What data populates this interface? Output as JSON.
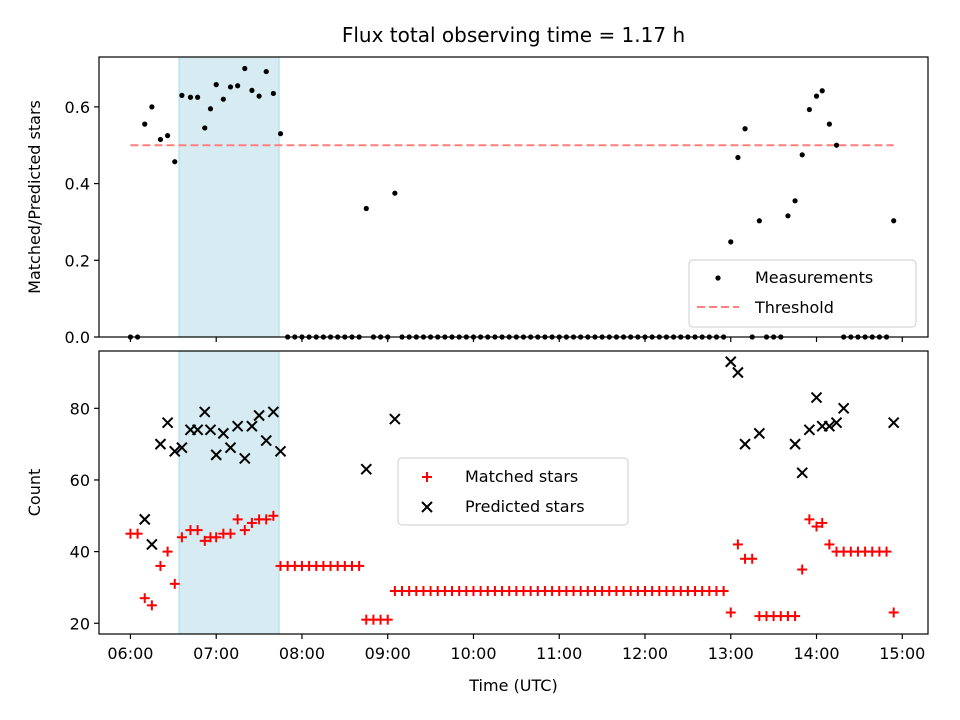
{
  "title": "Flux total observing time = 1.17 h",
  "colors": {
    "measurement": "#000000",
    "threshold": "#ff7f7f",
    "matched": "#ff0000",
    "predicted": "#000000",
    "span": "#add8e6"
  },
  "chart_data": [
    {
      "type": "scatter",
      "name": "ratio-panel",
      "ylabel": "Matched/Predicted stars",
      "xlabel": "",
      "ylim": [
        0,
        0.73
      ],
      "yticks": [
        0.0,
        0.2,
        0.4,
        0.6
      ],
      "ytick_labels": [
        "0.0",
        "0.2",
        "0.4",
        "0.6"
      ],
      "grid": false,
      "legend_position": "lower right",
      "highlight_span": {
        "start": "06:34",
        "end": "07:44"
      },
      "series": [
        {
          "name": "Measurements",
          "marker": "dot",
          "points": [
            [
              "06:00",
              0.0
            ],
            [
              "06:05",
              0.0
            ],
            [
              "06:10",
              0.555
            ],
            [
              "06:15",
              0.6
            ],
            [
              "06:21",
              0.515
            ],
            [
              "06:26",
              0.525
            ],
            [
              "06:31",
              0.457
            ],
            [
              "06:36",
              0.63
            ],
            [
              "06:42",
              0.625
            ],
            [
              "06:47",
              0.625
            ],
            [
              "06:52",
              0.545
            ],
            [
              "06:56",
              0.595
            ],
            [
              "07:00",
              0.658
            ],
            [
              "07:05",
              0.62
            ],
            [
              "07:10",
              0.652
            ],
            [
              "07:15",
              0.655
            ],
            [
              "07:20",
              0.7
            ],
            [
              "07:25",
              0.643
            ],
            [
              "07:30",
              0.628
            ],
            [
              "07:35",
              0.692
            ],
            [
              "07:40",
              0.635
            ],
            [
              "07:45",
              0.53
            ],
            [
              "07:50",
              0.0
            ],
            [
              "07:55",
              0.0
            ],
            [
              "08:00",
              0.0
            ],
            [
              "08:05",
              0.0
            ],
            [
              "08:10",
              0.0
            ],
            [
              "08:15",
              0.0
            ],
            [
              "08:20",
              0.0
            ],
            [
              "08:25",
              0.0
            ],
            [
              "08:30",
              0.0
            ],
            [
              "08:35",
              0.0
            ],
            [
              "08:40",
              0.0
            ],
            [
              "08:45",
              0.335
            ],
            [
              "08:50",
              0.0
            ],
            [
              "08:55",
              0.0
            ],
            [
              "09:00",
              0.0
            ],
            [
              "09:05",
              0.375
            ],
            [
              "09:10",
              0.0
            ],
            [
              "09:15",
              0.0
            ],
            [
              "09:20",
              0.0
            ],
            [
              "09:25",
              0.0
            ],
            [
              "09:30",
              0.0
            ],
            [
              "09:35",
              0.0
            ],
            [
              "09:40",
              0.0
            ],
            [
              "09:45",
              0.0
            ],
            [
              "09:50",
              0.0
            ],
            [
              "09:55",
              0.0
            ],
            [
              "10:00",
              0.0
            ],
            [
              "10:05",
              0.0
            ],
            [
              "10:10",
              0.0
            ],
            [
              "10:15",
              0.0
            ],
            [
              "10:20",
              0.0
            ],
            [
              "10:25",
              0.0
            ],
            [
              "10:30",
              0.0
            ],
            [
              "10:35",
              0.0
            ],
            [
              "10:40",
              0.0
            ],
            [
              "10:45",
              0.0
            ],
            [
              "10:50",
              0.0
            ],
            [
              "10:55",
              0.0
            ],
            [
              "11:00",
              0.0
            ],
            [
              "11:05",
              0.0
            ],
            [
              "11:10",
              0.0
            ],
            [
              "11:15",
              0.0
            ],
            [
              "11:20",
              0.0
            ],
            [
              "11:25",
              0.0
            ],
            [
              "11:30",
              0.0
            ],
            [
              "11:35",
              0.0
            ],
            [
              "11:40",
              0.0
            ],
            [
              "11:45",
              0.0
            ],
            [
              "11:50",
              0.0
            ],
            [
              "11:55",
              0.0
            ],
            [
              "12:00",
              0.0
            ],
            [
              "12:05",
              0.0
            ],
            [
              "12:10",
              0.0
            ],
            [
              "12:15",
              0.0
            ],
            [
              "12:20",
              0.0
            ],
            [
              "12:25",
              0.0
            ],
            [
              "12:30",
              0.0
            ],
            [
              "12:35",
              0.0
            ],
            [
              "12:40",
              0.0
            ],
            [
              "12:45",
              0.0
            ],
            [
              "12:50",
              0.0
            ],
            [
              "12:55",
              0.0
            ],
            [
              "13:00",
              0.248
            ],
            [
              "13:05",
              0.468
            ],
            [
              "13:10",
              0.543
            ],
            [
              "13:15",
              0.0
            ],
            [
              "13:20",
              0.303
            ],
            [
              "13:25",
              0.0
            ],
            [
              "13:30",
              0.0
            ],
            [
              "13:35",
              0.0
            ],
            [
              "13:40",
              0.316
            ],
            [
              "13:45",
              0.355
            ],
            [
              "13:50",
              0.475
            ],
            [
              "13:55",
              0.593
            ],
            [
              "14:00",
              0.628
            ],
            [
              "14:04",
              0.642
            ],
            [
              "14:09",
              0.555
            ],
            [
              "14:14",
              0.5
            ],
            [
              "14:19",
              0.0
            ],
            [
              "14:24",
              0.0
            ],
            [
              "14:29",
              0.0
            ],
            [
              "14:34",
              0.0
            ],
            [
              "14:39",
              0.0
            ],
            [
              "14:44",
              0.0
            ],
            [
              "14:49",
              0.0
            ],
            [
              "14:54",
              0.303
            ]
          ]
        },
        {
          "name": "Threshold",
          "style": "dashed",
          "from": "06:00",
          "to": "14:54",
          "value": 0.5
        }
      ]
    },
    {
      "type": "scatter",
      "name": "count-panel",
      "ylabel": "Count",
      "xlabel": "Time (UTC)",
      "ylim": [
        17,
        96
      ],
      "yticks": [
        20,
        40,
        60,
        80
      ],
      "ytick_labels": [
        "20",
        "40",
        "60",
        "80"
      ],
      "xticks": [
        "06:00",
        "07:00",
        "08:00",
        "09:00",
        "10:00",
        "11:00",
        "12:00",
        "13:00",
        "14:00",
        "15:00"
      ],
      "grid": false,
      "legend_position": "center",
      "highlight_span": {
        "start": "06:34",
        "end": "07:44"
      },
      "series": [
        {
          "name": "Matched stars",
          "marker": "plus",
          "points": [
            [
              "06:00",
              45
            ],
            [
              "06:05",
              45
            ],
            [
              "06:10",
              27
            ],
            [
              "06:15",
              25
            ],
            [
              "06:21",
              36
            ],
            [
              "06:26",
              40
            ],
            [
              "06:31",
              31
            ],
            [
              "06:36",
              44
            ],
            [
              "06:42",
              46
            ],
            [
              "06:47",
              46
            ],
            [
              "06:52",
              43
            ],
            [
              "06:56",
              44
            ],
            [
              "07:00",
              44
            ],
            [
              "07:05",
              45
            ],
            [
              "07:10",
              45
            ],
            [
              "07:15",
              49
            ],
            [
              "07:20",
              46
            ],
            [
              "07:25",
              48
            ],
            [
              "07:30",
              49
            ],
            [
              "07:35",
              49
            ],
            [
              "07:40",
              50
            ],
            [
              "07:45",
              36
            ],
            [
              "07:50",
              36
            ],
            [
              "07:55",
              36
            ],
            [
              "08:00",
              36
            ],
            [
              "08:05",
              36
            ],
            [
              "08:10",
              36
            ],
            [
              "08:15",
              36
            ],
            [
              "08:20",
              36
            ],
            [
              "08:25",
              36
            ],
            [
              "08:30",
              36
            ],
            [
              "08:35",
              36
            ],
            [
              "08:40",
              36
            ],
            [
              "08:45",
              21
            ],
            [
              "08:50",
              21
            ],
            [
              "08:55",
              21
            ],
            [
              "09:00",
              21
            ],
            [
              "09:05",
              29
            ],
            [
              "09:10",
              29
            ],
            [
              "09:15",
              29
            ],
            [
              "09:20",
              29
            ],
            [
              "09:25",
              29
            ],
            [
              "09:30",
              29
            ],
            [
              "09:35",
              29
            ],
            [
              "09:40",
              29
            ],
            [
              "09:45",
              29
            ],
            [
              "09:50",
              29
            ],
            [
              "09:55",
              29
            ],
            [
              "10:00",
              29
            ],
            [
              "10:05",
              29
            ],
            [
              "10:10",
              29
            ],
            [
              "10:15",
              29
            ],
            [
              "10:20",
              29
            ],
            [
              "10:25",
              29
            ],
            [
              "10:30",
              29
            ],
            [
              "10:35",
              29
            ],
            [
              "10:40",
              29
            ],
            [
              "10:45",
              29
            ],
            [
              "10:50",
              29
            ],
            [
              "10:55",
              29
            ],
            [
              "11:00",
              29
            ],
            [
              "11:05",
              29
            ],
            [
              "11:10",
              29
            ],
            [
              "11:15",
              29
            ],
            [
              "11:20",
              29
            ],
            [
              "11:25",
              29
            ],
            [
              "11:30",
              29
            ],
            [
              "11:35",
              29
            ],
            [
              "11:40",
              29
            ],
            [
              "11:45",
              29
            ],
            [
              "11:50",
              29
            ],
            [
              "11:55",
              29
            ],
            [
              "12:00",
              29
            ],
            [
              "12:05",
              29
            ],
            [
              "12:10",
              29
            ],
            [
              "12:15",
              29
            ],
            [
              "12:20",
              29
            ],
            [
              "12:25",
              29
            ],
            [
              "12:30",
              29
            ],
            [
              "12:35",
              29
            ],
            [
              "12:40",
              29
            ],
            [
              "12:45",
              29
            ],
            [
              "12:50",
              29
            ],
            [
              "12:55",
              29
            ],
            [
              "13:00",
              23
            ],
            [
              "13:05",
              42
            ],
            [
              "13:10",
              38
            ],
            [
              "13:15",
              38
            ],
            [
              "13:20",
              22
            ],
            [
              "13:25",
              22
            ],
            [
              "13:30",
              22
            ],
            [
              "13:35",
              22
            ],
            [
              "13:40",
              22
            ],
            [
              "13:45",
              22
            ],
            [
              "13:50",
              35
            ],
            [
              "13:55",
              49
            ],
            [
              "14:00",
              47
            ],
            [
              "14:04",
              48
            ],
            [
              "14:09",
              42
            ],
            [
              "14:14",
              40
            ],
            [
              "14:19",
              40
            ],
            [
              "14:24",
              40
            ],
            [
              "14:29",
              40
            ],
            [
              "14:34",
              40
            ],
            [
              "14:39",
              40
            ],
            [
              "14:44",
              40
            ],
            [
              "14:49",
              40
            ],
            [
              "14:54",
              23
            ]
          ]
        },
        {
          "name": "Predicted stars",
          "marker": "x",
          "points": [
            [
              "06:10",
              49
            ],
            [
              "06:15",
              42
            ],
            [
              "06:21",
              70
            ],
            [
              "06:26",
              76
            ],
            [
              "06:31",
              68
            ],
            [
              "06:36",
              69
            ],
            [
              "06:42",
              74
            ],
            [
              "06:47",
              74
            ],
            [
              "06:52",
              79
            ],
            [
              "06:56",
              74
            ],
            [
              "07:00",
              67
            ],
            [
              "07:05",
              73
            ],
            [
              "07:10",
              69
            ],
            [
              "07:15",
              75
            ],
            [
              "07:20",
              66
            ],
            [
              "07:25",
              75
            ],
            [
              "07:30",
              78
            ],
            [
              "07:35",
              71
            ],
            [
              "07:40",
              79
            ],
            [
              "07:45",
              68
            ],
            [
              "08:45",
              63
            ],
            [
              "09:05",
              77
            ],
            [
              "13:00",
              93
            ],
            [
              "13:05",
              90
            ],
            [
              "13:10",
              70
            ],
            [
              "13:20",
              73
            ],
            [
              "13:45",
              70
            ],
            [
              "13:50",
              62
            ],
            [
              "13:55",
              74
            ],
            [
              "14:00",
              83
            ],
            [
              "14:04",
              75
            ],
            [
              "14:09",
              75
            ],
            [
              "14:14",
              76
            ],
            [
              "14:19",
              80
            ],
            [
              "14:54",
              76
            ]
          ]
        }
      ]
    }
  ]
}
